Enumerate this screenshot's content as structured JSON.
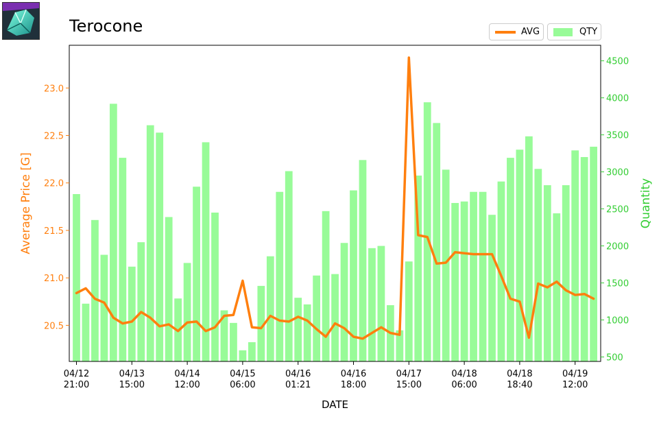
{
  "title": "Terocone",
  "icon": {
    "name": "terocone-item-icon"
  },
  "legend": {
    "avg_label": "AVG",
    "qty_label": "QTY"
  },
  "colors": {
    "avg": "#ff7f0e",
    "qty": "#98fb98",
    "left_axis": "#ff7f0e",
    "right_axis": "#32cd32"
  },
  "chart_data": {
    "type": "bar+line",
    "title": "Terocone",
    "xlabel": "DATE",
    "ylabel_left": "Average Price [G]",
    "ylabel_right": "Quantity",
    "ylim_left": [
      20.12,
      23.45
    ],
    "ylim_right": [
      440,
      4710
    ],
    "yticks_left": [
      "20.5",
      "21.0",
      "21.5",
      "22.0",
      "22.5",
      "23.0"
    ],
    "yticks_right": [
      "500",
      "1000",
      "1500",
      "2000",
      "2500",
      "3000",
      "3500",
      "4000",
      "4500"
    ],
    "xticks": [
      {
        "index": 0,
        "label": [
          "04/12",
          "21:00"
        ]
      },
      {
        "index": 6,
        "label": [
          "04/13",
          "15:00"
        ]
      },
      {
        "index": 12,
        "label": [
          "04/14",
          "12:00"
        ]
      },
      {
        "index": 18,
        "label": [
          "04/15",
          "06:00"
        ]
      },
      {
        "index": 24,
        "label": [
          "04/16",
          "01:21"
        ]
      },
      {
        "index": 30,
        "label": [
          "04/16",
          "18:00"
        ]
      },
      {
        "index": 36,
        "label": [
          "04/17",
          "15:00"
        ]
      },
      {
        "index": 42,
        "label": [
          "04/18",
          "06:00"
        ]
      },
      {
        "index": 48,
        "label": [
          "04/18",
          "18:40"
        ]
      },
      {
        "index": 54,
        "label": [
          "04/19",
          "12:00"
        ]
      }
    ],
    "series": [
      {
        "name": "QTY",
        "axis": "right",
        "kind": "bar",
        "values": [
          2700,
          1220,
          2350,
          1880,
          3920,
          3190,
          1720,
          2050,
          3630,
          3530,
          2390,
          1290,
          1770,
          2800,
          3400,
          2450,
          1130,
          960,
          590,
          700,
          1460,
          1860,
          2730,
          3010,
          1300,
          1210,
          1600,
          2470,
          1620,
          2040,
          2750,
          3160,
          1970,
          2000,
          1200,
          860,
          1790,
          2950,
          3940,
          3660,
          3030,
          2580,
          2600,
          2730,
          2730,
          2420,
          2870,
          3190,
          3300,
          3480,
          3040,
          2820,
          2440,
          2820,
          3290,
          3200,
          3340
        ]
      },
      {
        "name": "AVG",
        "axis": "left",
        "kind": "line",
        "values": [
          20.84,
          20.89,
          20.78,
          20.74,
          20.58,
          20.52,
          20.54,
          20.64,
          20.58,
          20.49,
          20.51,
          20.44,
          20.53,
          20.54,
          20.44,
          20.48,
          20.6,
          20.61,
          20.97,
          20.48,
          20.47,
          20.6,
          20.55,
          20.54,
          20.59,
          20.55,
          20.46,
          20.38,
          20.52,
          20.47,
          20.38,
          20.36,
          20.42,
          20.48,
          20.42,
          20.4,
          23.32,
          21.45,
          21.43,
          21.15,
          21.16,
          21.27,
          21.26,
          21.25,
          21.25,
          21.25,
          21.02,
          20.78,
          20.75,
          20.37,
          20.94,
          20.9,
          20.96,
          20.87,
          20.82,
          20.83,
          20.78
        ]
      }
    ],
    "legend_position": "top-right",
    "grid": false
  }
}
